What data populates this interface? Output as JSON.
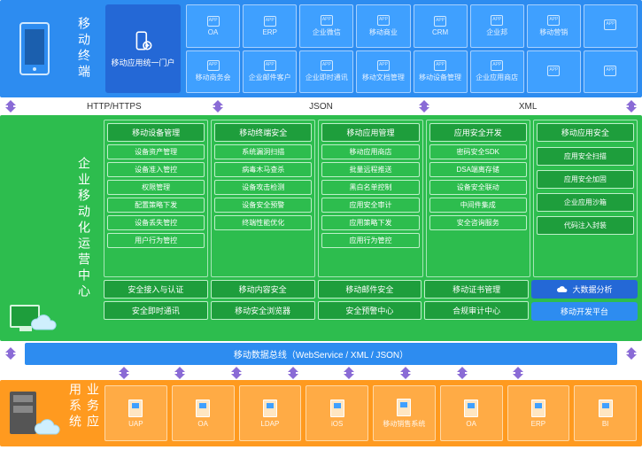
{
  "colors": {
    "blue": "#2d8cf0",
    "blue_dark": "#2468d6",
    "green": "#2dbd4e",
    "green_dark": "#1e9e3c",
    "orange": "#ff9a1f",
    "arrow": "#8a6bd6"
  },
  "tier_blue": {
    "label": "移动终端",
    "portal": {
      "label": "移动应用统一门户"
    },
    "apps_row1": [
      {
        "t": "OA"
      },
      {
        "t": "ERP"
      },
      {
        "t": "企业微信"
      },
      {
        "t": "移动商业"
      },
      {
        "t": "CRM"
      },
      {
        "t": "企业邦"
      },
      {
        "t": "移动营销"
      },
      {
        "t": ""
      }
    ],
    "apps_row2": [
      {
        "t": "移动商务会"
      },
      {
        "t": "企业邮件客户"
      },
      {
        "t": "企业即时通讯"
      },
      {
        "t": "移动文档管理"
      },
      {
        "t": "移动设备管理"
      },
      {
        "t": "企业应用商店"
      },
      {
        "t": ""
      },
      {
        "t": ""
      }
    ]
  },
  "protocols": {
    "a": "HTTP/HTTPS",
    "b": "JSON",
    "c": "XML"
  },
  "tier_green": {
    "label": "企业移动化运营中心",
    "cols": [
      {
        "head": "移动设备管理",
        "items": [
          "设备资产管理",
          "设备准入管控",
          "权限管理",
          "配置策略下发",
          "设备丢失管控",
          "用户行为管控"
        ]
      },
      {
        "head": "移动终端安全",
        "items": [
          "系统漏洞扫描",
          "病毒木马查杀",
          "设备攻击检测",
          "设备安全预警",
          "终端性能优化"
        ]
      },
      {
        "head": "移动应用管理",
        "items": [
          "移动应用商店",
          "批量远程推送",
          "黑白名单控制",
          "应用安全审计",
          "应用策略下发",
          "应用行为管控"
        ]
      },
      {
        "head": "应用安全开发",
        "items": [
          "密码安全SDK",
          "DSA端离存储",
          "设备安全联动",
          "中间件集成",
          "安全咨询服务"
        ]
      }
    ],
    "col_special": {
      "head": "移动应用安全",
      "items": [
        "应用安全扫描",
        "应用安全加固",
        "企业应用沙箱",
        "代码注入封装"
      ]
    },
    "row_mid": {
      "left": [
        [
          "安全接入与认证",
          "移动内容安全",
          "移动邮件安全",
          "移动证书管理"
        ],
        [
          "安全即时通讯",
          "移动安全浏览器",
          "安全预警中心",
          "合规审计中心"
        ]
      ],
      "right": [
        {
          "t": "大数据分析",
          "ico": "cloud"
        },
        {
          "t": "移动开发平台"
        }
      ]
    }
  },
  "bus": {
    "t": "移动数据总线（WebService / XML / JSON）"
  },
  "tier_orange": {
    "label": "业务应用系统",
    "servers": [
      {
        "t": "UAP"
      },
      {
        "t": "OA"
      },
      {
        "t": "LDAP"
      },
      {
        "t": "iOS"
      },
      {
        "t": "移动销售系统"
      },
      {
        "t": "OA"
      },
      {
        "t": "ERP"
      },
      {
        "t": "BI"
      }
    ]
  }
}
